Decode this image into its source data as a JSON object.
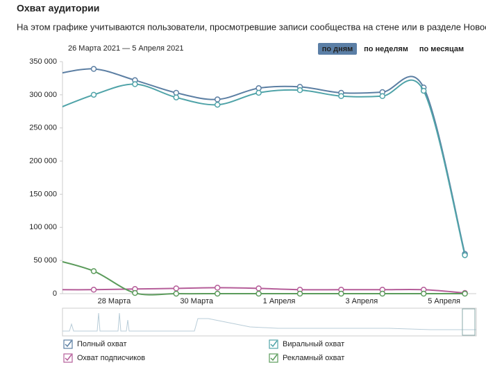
{
  "chart_data": {
    "type": "line",
    "title": "Охват аудитории",
    "subtitle": "На этом графике учитываются пользователи, просмотревшие записи сообщества на стене или в разделе Новости.",
    "date_range": "26 Марта 2021 — 5 Апреля 2021",
    "periods": [
      "по дням",
      "по неделям",
      "по месяцам"
    ],
    "active_period": 0,
    "categories": [
      null,
      null,
      "28 Марта",
      null,
      "30 Марта",
      null,
      "1 Апреля",
      null,
      "3 Апреля",
      null,
      "5 Апреля"
    ],
    "series": [
      {
        "name": "Полный охват",
        "color": "#5c7fa3",
        "values": [
          330000,
          339000,
          322000,
          303000,
          293000,
          310000,
          312000,
          303000,
          304000,
          311000,
          60000
        ]
      },
      {
        "name": "Виральный охват",
        "color": "#4fa3a8",
        "values": [
          276000,
          300000,
          316000,
          296000,
          285000,
          303000,
          307000,
          298000,
          298000,
          306000,
          58000
        ]
      },
      {
        "name": "Охват подписчиков",
        "color": "#b55d99",
        "values": [
          6000,
          6000,
          7000,
          8000,
          9000,
          8000,
          6000,
          6000,
          6000,
          6000,
          1000
        ]
      },
      {
        "name": "Рекламный охват",
        "color": "#5b9b5b",
        "values": [
          52000,
          34000,
          1000,
          0,
          0,
          0,
          0,
          0,
          0,
          0,
          0
        ]
      }
    ],
    "ylim": [
      0,
      350000
    ],
    "yticks": [
      0,
      {
        "value": 50000,
        "label": "50 000"
      },
      {
        "value": 100000,
        "label": "100 000"
      },
      {
        "value": 150000,
        "label": "150 000"
      },
      {
        "value": 200000,
        "label": "200 000"
      },
      {
        "value": 250000,
        "label": "250 000"
      },
      {
        "value": 300000,
        "label": "300 000"
      },
      {
        "value": 350000,
        "label": "350 000"
      }
    ],
    "grid": false
  }
}
